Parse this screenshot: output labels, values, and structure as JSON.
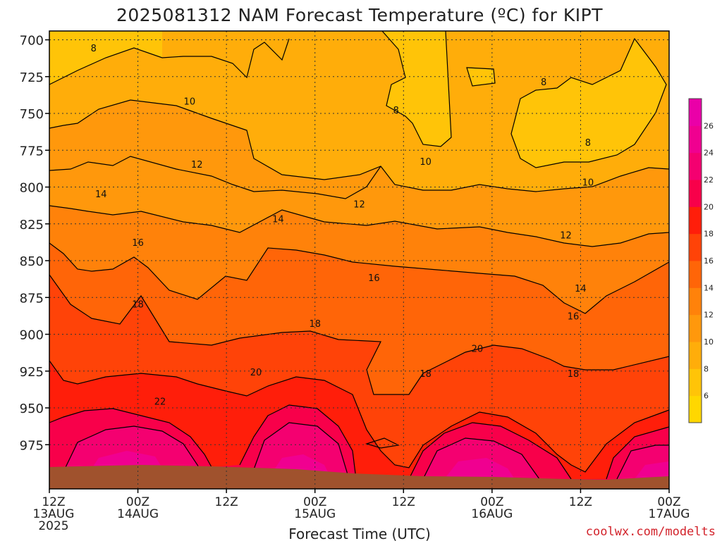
{
  "chart_data": {
    "type": "heatmap",
    "title": "2025081312 NAM Forecast Temperature (ºC) for KIPT",
    "xlabel": "Forecast Time (UTC)",
    "ylabel": "",
    "credit": "coolwx.com/modelts",
    "y_axis": {
      "unit": "hPa",
      "reversed": true,
      "ylim": [
        1005,
        694
      ],
      "ticks": [
        "700",
        "725",
        "750",
        "775",
        "800",
        "825",
        "850",
        "875",
        "900",
        "925",
        "950",
        "975"
      ]
    },
    "x_axis": {
      "range_hours": [
        0,
        84
      ],
      "ticks": [
        {
          "hour": 0,
          "line1": "12Z",
          "line2": "13AUG",
          "line3": "2025"
        },
        {
          "hour": 12,
          "line1": "00Z",
          "line2": "14AUG",
          "line3": ""
        },
        {
          "hour": 24,
          "line1": "12Z",
          "line2": "",
          "line3": ""
        },
        {
          "hour": 36,
          "line1": "00Z",
          "line2": "15AUG",
          "line3": ""
        },
        {
          "hour": 48,
          "line1": "12Z",
          "line2": "",
          "line3": ""
        },
        {
          "hour": 60,
          "line1": "00Z",
          "line2": "16AUG",
          "line3": ""
        },
        {
          "hour": 72,
          "line1": "12Z",
          "line2": "",
          "line3": ""
        },
        {
          "hour": 84,
          "line1": "00Z",
          "line2": "17AUG",
          "line3": ""
        }
      ]
    },
    "grid": true,
    "colorbar": {
      "placement": "right",
      "labels": [
        "6",
        "8",
        "10",
        "12",
        "14",
        "16",
        "18",
        "20",
        "22",
        "24",
        "26"
      ],
      "levels": [
        {
          "min": 4,
          "color": "#ffd700"
        },
        {
          "min": 6,
          "color": "#ffc408"
        },
        {
          "min": 8,
          "color": "#ffad0a"
        },
        {
          "min": 10,
          "color": "#ff980c"
        },
        {
          "min": 12,
          "color": "#ff820a"
        },
        {
          "min": 14,
          "color": "#ff6508"
        },
        {
          "min": 16,
          "color": "#ff4308"
        },
        {
          "min": 18,
          "color": "#ff1e0a"
        },
        {
          "min": 20,
          "color": "#f8004a"
        },
        {
          "min": 22,
          "color": "#f40070"
        },
        {
          "min": 24,
          "color": "#f00090"
        },
        {
          "min": 26,
          "color": "#ea00a8"
        }
      ]
    },
    "ground_color": "#a0522d",
    "contour_labels": [
      {
        "value": "8",
        "hour": 6.0,
        "p": 706
      },
      {
        "value": "10",
        "hour": 19.0,
        "p": 742
      },
      {
        "value": "12",
        "hour": 20.0,
        "p": 785
      },
      {
        "value": "14",
        "hour": 7.0,
        "p": 805
      },
      {
        "value": "16",
        "hour": 12.0,
        "p": 838
      },
      {
        "value": "18",
        "hour": 12.0,
        "p": 880
      },
      {
        "value": "22",
        "hour": 15.0,
        "p": 946
      },
      {
        "value": "20",
        "hour": 28.0,
        "p": 926
      },
      {
        "value": "14",
        "hour": 31.0,
        "p": 822
      },
      {
        "value": "18",
        "hour": 36.0,
        "p": 893
      },
      {
        "value": "12",
        "hour": 42.0,
        "p": 812
      },
      {
        "value": "16",
        "hour": 44.0,
        "p": 862
      },
      {
        "value": "8",
        "hour": 47.0,
        "p": 748
      },
      {
        "value": "10",
        "hour": 51.0,
        "p": 783
      },
      {
        "value": "18",
        "hour": 51.0,
        "p": 927
      },
      {
        "value": "20",
        "hour": 58.0,
        "p": 910
      },
      {
        "value": "8",
        "hour": 67.0,
        "p": 729
      },
      {
        "value": "8",
        "hour": 73.0,
        "p": 770
      },
      {
        "value": "10",
        "hour": 73.0,
        "p": 797
      },
      {
        "value": "12",
        "hour": 70.0,
        "p": 833
      },
      {
        "value": "14",
        "hour": 72.0,
        "p": 869
      },
      {
        "value": "16",
        "hour": 71.0,
        "p": 888
      },
      {
        "value": "18",
        "hour": 71.0,
        "p": 927
      }
    ]
  }
}
